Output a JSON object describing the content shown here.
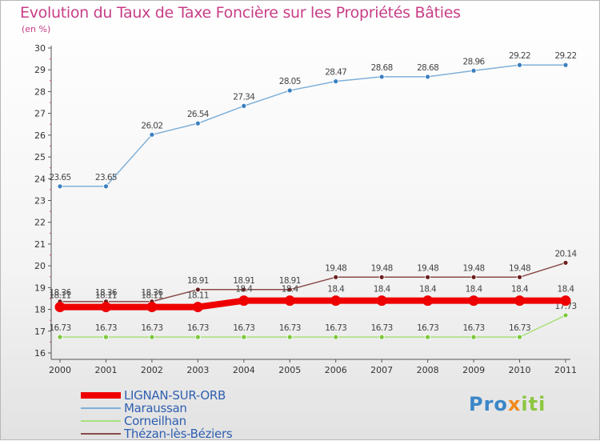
{
  "title": "Evolution du Taux de Taxe Foncière sur les Propriétés Bâties",
  "subtitle": "(en %)",
  "brand": {
    "part1": "Pro",
    "part2": "x",
    "part3": "iti"
  },
  "colors": {
    "title": "#c83e86",
    "axis": "#555555",
    "legend_text": "#2f5fb0",
    "label": "#444444"
  },
  "chart_data": {
    "type": "line",
    "title": "Evolution du Taux de Taxe Foncière sur les Propriétés Bâties",
    "ylabel": "(en %)",
    "xlabel": "",
    "x": [
      "2000",
      "2001",
      "2002",
      "2003",
      "2004",
      "2005",
      "2006",
      "2007",
      "2008",
      "2009",
      "2010",
      "2011"
    ],
    "ylim": [
      16,
      30
    ],
    "yticks": [
      16,
      17,
      18,
      19,
      20,
      21,
      22,
      23,
      24,
      25,
      26,
      27,
      28,
      29,
      30
    ],
    "grid": false,
    "legend_position": "bottom-left",
    "series": [
      {
        "name": "Maraussan",
        "color": "#7fb0d8",
        "marker_color": "#3a7fc0",
        "emphasis": false,
        "values": [
          23.65,
          23.65,
          26.02,
          26.54,
          27.34,
          28.05,
          28.47,
          28.68,
          28.68,
          28.96,
          29.22,
          29.22
        ],
        "labels": [
          "23.65",
          "23.65",
          "26.02",
          "26.54",
          "27.34",
          "28.05",
          "28.47",
          "28.68",
          "28.68",
          "28.96",
          "29.22",
          "29.22"
        ]
      },
      {
        "name": "Corneilhan",
        "color": "#a8e07a",
        "marker_color": "#7cc83a",
        "emphasis": false,
        "values": [
          16.73,
          16.73,
          16.73,
          16.73,
          16.73,
          16.73,
          16.73,
          16.73,
          16.73,
          16.73,
          16.73,
          17.73
        ],
        "labels": [
          "16.73",
          "16.73",
          "16.73",
          "16.73",
          "16.73",
          "16.73",
          "16.73",
          "16.73",
          "16.73",
          "16.73",
          "16.73",
          "17.73"
        ]
      },
      {
        "name": "Thézan-lès-Béziers",
        "color": "#8a4a4a",
        "marker_color": "#6b1e1e",
        "emphasis": false,
        "values": [
          18.36,
          18.36,
          18.36,
          18.91,
          18.91,
          18.91,
          19.48,
          19.48,
          19.48,
          19.48,
          19.48,
          20.14
        ],
        "labels": [
          "18.36",
          "18.36",
          "18.36",
          "18.91",
          "18.91",
          "18.91",
          "19.48",
          "19.48",
          "19.48",
          "19.48",
          "19.48",
          "20.14"
        ]
      },
      {
        "name": "LIGNAN-SUR-ORB",
        "color": "#ee0000",
        "marker_color": "#ee0000",
        "emphasis": true,
        "values": [
          18.11,
          18.11,
          18.11,
          18.11,
          18.4,
          18.4,
          18.4,
          18.4,
          18.4,
          18.4,
          18.4,
          18.4
        ],
        "labels": [
          "18.11",
          "18.11",
          "18.11",
          "18.11",
          "18.4",
          "18.4",
          "18.4",
          "18.4",
          "18.4",
          "18.4",
          "18.4",
          "18.4"
        ]
      }
    ],
    "legend": [
      "LIGNAN-SUR-ORB",
      "Maraussan",
      "Corneilhan",
      "Thézan-lès-Béziers"
    ]
  }
}
